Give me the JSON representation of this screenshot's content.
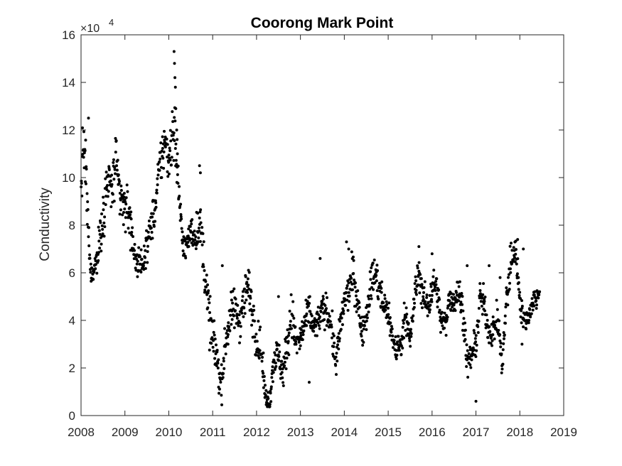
{
  "chart_data": {
    "type": "scatter",
    "title": "Coorong Mark Point",
    "xlabel": "",
    "ylabel": "Conductivity",
    "y_exponent_label": "×10",
    "y_exponent_power": "4",
    "xlim": [
      2008,
      2019
    ],
    "ylim": [
      0,
      16
    ],
    "y_scale_factor": 10000,
    "x_ticks": [
      "2008",
      "2009",
      "2010",
      "2011",
      "2012",
      "2013",
      "2014",
      "2015",
      "2016",
      "2017",
      "2018",
      "2019"
    ],
    "y_ticks": [
      "0",
      "2",
      "4",
      "6",
      "8",
      "10",
      "12",
      "14",
      "16"
    ],
    "grid": false,
    "legend": "none",
    "marker_color": "#000000",
    "series_trend": {
      "x": [
        2008.0,
        2008.05,
        2008.1,
        2008.15,
        2008.2,
        2008.25,
        2008.3,
        2008.35,
        2008.4,
        2008.5,
        2008.6,
        2008.7,
        2008.8,
        2008.9,
        2009.0,
        2009.1,
        2009.2,
        2009.3,
        2009.4,
        2009.5,
        2009.6,
        2009.7,
        2009.8,
        2009.9,
        2010.0,
        2010.05,
        2010.1,
        2010.15,
        2010.2,
        2010.3,
        2010.4,
        2010.5,
        2010.6,
        2010.7,
        2010.8,
        2010.9,
        2011.0,
        2011.1,
        2011.15,
        2011.2,
        2011.3,
        2011.4,
        2011.5,
        2011.6,
        2011.7,
        2011.8,
        2011.9,
        2012.0,
        2012.1,
        2012.2,
        2012.3,
        2012.4,
        2012.5,
        2012.6,
        2012.7,
        2012.8,
        2012.9,
        2013.0,
        2013.1,
        2013.2,
        2013.3,
        2013.4,
        2013.5,
        2013.6,
        2013.7,
        2013.8,
        2013.9,
        2014.0,
        2014.1,
        2014.2,
        2014.3,
        2014.4,
        2014.5,
        2014.6,
        2014.7,
        2014.8,
        2014.9,
        2015.0,
        2015.1,
        2015.2,
        2015.3,
        2015.4,
        2015.5,
        2015.6,
        2015.7,
        2015.8,
        2015.9,
        2016.0,
        2016.1,
        2016.2,
        2016.3,
        2016.4,
        2016.5,
        2016.6,
        2016.7,
        2016.8,
        2016.9,
        2017.0,
        2017.1,
        2017.2,
        2017.3,
        2017.4,
        2017.5,
        2017.6,
        2017.7,
        2017.8,
        2017.9,
        2018.0,
        2018.1,
        2018.2,
        2018.3,
        2018.4,
        2018.45
      ],
      "y": [
        9.5,
        11.5,
        10.5,
        8.5,
        6.3,
        5.9,
        6.2,
        6.5,
        7.0,
        8.5,
        9.8,
        9.5,
        10.5,
        9.0,
        8.8,
        8.5,
        7.0,
        6.3,
        6.4,
        7.2,
        8.0,
        8.8,
        10.5,
        11.5,
        10.8,
        11.5,
        12.2,
        11.5,
        10.2,
        7.5,
        7.0,
        7.8,
        7.5,
        8.2,
        6.5,
        4.5,
        3.0,
        2.6,
        1.5,
        1.3,
        3.2,
        4.2,
        4.5,
        4.0,
        4.8,
        5.5,
        4.5,
        3.2,
        2.8,
        0.8,
        0.6,
        2.5,
        2.5,
        1.8,
        3.0,
        4.2,
        3.0,
        3.2,
        3.8,
        4.5,
        3.6,
        4.0,
        4.4,
        4.5,
        3.8,
        2.2,
        3.5,
        4.8,
        5.2,
        6.0,
        4.8,
        3.5,
        4.3,
        5.5,
        6.0,
        5.2,
        4.6,
        4.4,
        3.2,
        2.8,
        3.0,
        4.5,
        3.0,
        5.0,
        6.0,
        5.0,
        4.5,
        5.4,
        5.5,
        4.0,
        3.8,
        5.0,
        4.8,
        5.2,
        4.5,
        2.2,
        2.5,
        3.0,
        5.0,
        4.5,
        3.5,
        3.6,
        4.0,
        2.0,
        5.0,
        6.5,
        7.0,
        5.0,
        3.9,
        4.2,
        4.8,
        5.0,
        5.2
      ],
      "spread": [
        1.0,
        0.7,
        1.0,
        0.9,
        0.5,
        0.4,
        0.4,
        0.5,
        0.7,
        1.0,
        1.0,
        0.9,
        1.0,
        0.9,
        0.9,
        0.9,
        0.7,
        0.5,
        0.5,
        0.6,
        0.6,
        0.8,
        0.9,
        0.9,
        0.9,
        1.1,
        1.2,
        1.1,
        0.9,
        0.6,
        0.5,
        0.5,
        0.6,
        0.7,
        0.9,
        0.9,
        1.0,
        0.8,
        0.6,
        0.6,
        0.7,
        0.7,
        0.7,
        0.8,
        0.8,
        0.8,
        0.8,
        0.7,
        0.7,
        0.4,
        0.3,
        0.6,
        0.6,
        0.6,
        0.8,
        0.9,
        0.6,
        0.6,
        0.6,
        0.6,
        0.6,
        0.5,
        0.5,
        0.6,
        0.6,
        0.6,
        0.6,
        0.6,
        0.6,
        0.7,
        0.6,
        0.5,
        0.6,
        0.7,
        0.7,
        0.7,
        0.6,
        0.6,
        0.5,
        0.5,
        0.5,
        0.6,
        0.5,
        0.6,
        0.6,
        0.6,
        0.6,
        0.6,
        0.5,
        0.5,
        0.5,
        0.5,
        0.5,
        0.6,
        0.6,
        0.5,
        0.5,
        0.5,
        0.6,
        0.6,
        0.5,
        0.5,
        0.6,
        0.5,
        0.7,
        0.8,
        0.4,
        0.6,
        0.4,
        0.4,
        0.4,
        0.4,
        0.4
      ]
    },
    "series_peaks": {
      "x": [
        2008.17,
        2010.12,
        2010.13,
        2010.14,
        2010.15,
        2010.16,
        2010.18,
        2010.19,
        2010.7,
        2010.72,
        2011.22,
        2011.35,
        2012.5,
        2013.2,
        2013.45,
        2014.05,
        2014.1,
        2015.7,
        2016.0,
        2016.8,
        2017.0,
        2017.3,
        2017.55,
        2017.95,
        2018.05,
        2018.08
      ]
    },
    "peak_y": [
      12.5,
      15.3,
      14.8,
      14.2,
      13.8,
      12.9,
      12.0,
      11.6,
      10.5,
      10.2,
      6.3,
      3.0,
      5.0,
      1.4,
      6.6,
      7.3,
      7.0,
      7.1,
      6.8,
      6.3,
      0.6,
      6.3,
      5.8,
      7.4,
      3.0,
      7.0
    ],
    "point_density": 1600
  }
}
